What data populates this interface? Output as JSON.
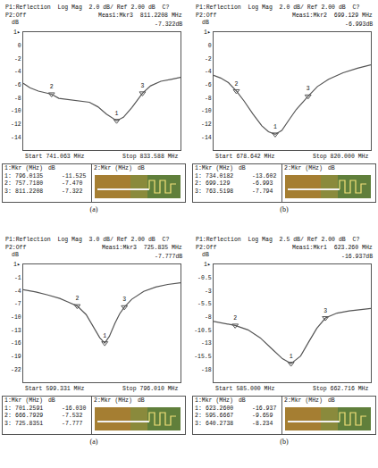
{
  "chart_data": [
    {
      "type": "line",
      "header": "P1:Reflection  Log Mag  2.0 dB/ Ref 2.00 dB  C?",
      "status": "P2:Off",
      "readout": "Meas1:Mkr3  811.2208 MHz",
      "readout_db": "-7.322dB",
      "y_label": "dB",
      "ref": 2,
      "ref_label": "1▸",
      "start_label": "Start 741.063 MHz",
      "stop_label": "Stop 833.588 MHz",
      "xlim": [
        741.063,
        833.588
      ],
      "ylim": [
        -16,
        2
      ],
      "yticks": [
        0,
        -2,
        -4,
        -6,
        -8,
        -10,
        -12,
        -14
      ],
      "tick_labels": "y",
      "grid": false,
      "color": "#555555",
      "x": [
        741.063,
        745,
        750,
        757.718,
        762,
        768,
        774,
        780,
        785,
        790,
        796.0135,
        800,
        805,
        811.2208,
        816,
        822,
        828,
        833.588
      ],
      "values": [
        -5.8,
        -6.5,
        -7.0,
        -7.47,
        -8.1,
        -8.3,
        -8.4,
        -8.7,
        -9.4,
        -10.5,
        -11.525,
        -11.0,
        -9.5,
        -7.322,
        -6.2,
        -5.5,
        -5.2,
        -4.9
      ],
      "marker_points": [
        {
          "label": "1",
          "x": 796.0135,
          "y": -11.525
        },
        {
          "label": "2",
          "x": 757.718,
          "y": -7.47
        },
        {
          "label": "3",
          "x": 811.2208,
          "y": -7.322
        }
      ],
      "table": {
        "columns": [
          "1:Mkr (MHz)",
          "dB",
          "2:Mkr (MHz)",
          "dB"
        ],
        "rows": [
          [
            "1:",
            "796.0135",
            "-11.525"
          ],
          [
            "2:",
            "757.7180",
            "-7.470"
          ],
          [
            "3:",
            "811.2208",
            "-7.322"
          ]
        ]
      },
      "caption": "(a)"
    },
    {
      "type": "line",
      "header": "P1:Reflection  Log Mag  2.0 dB/ Ref 2.00 dB  C?",
      "status": "P2:Off",
      "readout": "Meas1:Mkr2  699.129 MHz",
      "readout_db": "-6.993dB",
      "y_label": "dB",
      "ref": 2,
      "ref_label": "1▸",
      "start_label": "Start 678.642 MHz",
      "stop_label": "Stop 820.000 MHz",
      "xlim": [
        678.642,
        820
      ],
      "ylim": [
        -16,
        2
      ],
      "yticks": [
        0,
        -2,
        -4,
        -6,
        -8,
        -10,
        -12,
        -14
      ],
      "tick_labels": "y",
      "grid": false,
      "color": "#555555",
      "x": [
        678.642,
        685,
        692,
        699.129,
        706,
        714,
        722,
        728,
        734.0182,
        740,
        746,
        753,
        763.5198,
        772,
        782,
        795,
        808,
        820
      ],
      "values": [
        -4.6,
        -5.0,
        -5.7,
        -6.993,
        -8.5,
        -10.5,
        -12.3,
        -13.2,
        -13.602,
        -13.0,
        -11.5,
        -9.8,
        -7.794,
        -6.3,
        -5.2,
        -4.2,
        -3.5,
        -3.0
      ],
      "marker_points": [
        {
          "label": "1",
          "x": 734.0182,
          "y": -13.602
        },
        {
          "label": "2",
          "x": 699.129,
          "y": -6.993
        },
        {
          "label": "3",
          "x": 763.5198,
          "y": -7.794
        }
      ],
      "table": {
        "columns": [
          "1:Mkr (MHz)",
          "dB",
          "2:Mkr (MHz)",
          "dB"
        ],
        "rows": [
          [
            "1:",
            "734.0182",
            "-13.602"
          ],
          [
            "2:",
            "699.129",
            "-6.993"
          ],
          [
            "3:",
            "763.5198",
            "-7.794"
          ]
        ]
      },
      "caption": "(b)"
    },
    {
      "type": "line",
      "header": "P1:Reflection  Log Mag  3.0 dB/ Ref 2.00 dB  C?",
      "status": "P2:Off",
      "readout": "Meas1:Mkr3  725.835 MHz",
      "readout_db": "-7.777dB",
      "y_label": "dB",
      "ref": 2,
      "ref_label": "1▸",
      "start_label": "Start 599.331 MHz",
      "stop_label": "Stop 796.010 MHz",
      "xlim": [
        599.331,
        796.01
      ],
      "ylim": [
        -25,
        2
      ],
      "yticks": [
        -1,
        -4,
        -7,
        -10,
        -13,
        -16,
        -19,
        -22
      ],
      "tick_labels": "y",
      "grid": false,
      "color": "#555555",
      "x": [
        599.331,
        615,
        630,
        645,
        655,
        666.7929,
        678,
        688,
        695,
        701.2591,
        707,
        714,
        720,
        725.8351,
        735,
        750,
        765,
        780,
        796.01
      ],
      "values": [
        -3.8,
        -4.3,
        -5.0,
        -5.8,
        -6.6,
        -7.532,
        -9.5,
        -12.5,
        -14.8,
        -16.03,
        -14.5,
        -11.5,
        -9.3,
        -7.777,
        -6.0,
        -4.2,
        -3.2,
        -2.6,
        -2.2
      ],
      "marker_points": [
        {
          "label": "1",
          "x": 701.2591,
          "y": -16.03
        },
        {
          "label": "2",
          "x": 666.7929,
          "y": -7.532
        },
        {
          "label": "3",
          "x": 725.8351,
          "y": -7.777
        }
      ],
      "table": {
        "columns": [
          "1:Mkr (MHz)",
          "dB",
          "2:Mkr (MHz)",
          "dB"
        ],
        "rows": [
          [
            "1:",
            "701.2591",
            "-16.030"
          ],
          [
            "2:",
            "666.7929",
            "-7.532"
          ],
          [
            "3:",
            "725.8351",
            "-7.777"
          ]
        ]
      },
      "caption": "(a)"
    },
    {
      "type": "line",
      "header": "P1:Reflection  Log Mag  2.5 dB/ Ref 2.00 dB  C?",
      "status": "P2:Off",
      "readout": "Meas1:Mkr1  623.260 MHz",
      "readout_db": "-16.937dB",
      "y_label": "dB",
      "ref": 2,
      "ref_label": "1▸",
      "start_label": "Start 585.000 MHz",
      "stop_label": "Stop 662.716 MHz",
      "xlim": [
        585,
        662.716
      ],
      "ylim": [
        -20.5,
        2
      ],
      "yticks": [
        -0.5,
        -3,
        -5.5,
        -8,
        -10.5,
        -13,
        -15.5,
        -18
      ],
      "tick_labels": "y",
      "grid": false,
      "color": "#555555",
      "x": [
        585,
        590,
        595.6667,
        602,
        608,
        614,
        619,
        623.26,
        628,
        632,
        636,
        640.2738,
        646,
        652,
        658,
        662.716
      ],
      "values": [
        -8.9,
        -9.2,
        -9.659,
        -10.5,
        -12.0,
        -14.2,
        -16.0,
        -16.937,
        -15.5,
        -12.8,
        -10.2,
        -8.234,
        -7.3,
        -6.9,
        -6.6,
        -6.4
      ],
      "marker_points": [
        {
          "label": "1",
          "x": 623.26,
          "y": -16.937
        },
        {
          "label": "2",
          "x": 595.6667,
          "y": -9.659
        },
        {
          "label": "3",
          "x": 640.2738,
          "y": -8.234
        }
      ],
      "table": {
        "columns": [
          "1:Mkr (MHz)",
          "dB",
          "2:Mkr (MHz)",
          "dB"
        ],
        "rows": [
          [
            "1:",
            "623.2600",
            "-16.937"
          ],
          [
            "2:",
            "595.6667",
            "-9.659"
          ],
          [
            "3:",
            "640.2738",
            "-8.234"
          ]
        ]
      },
      "caption": "(b)"
    }
  ]
}
